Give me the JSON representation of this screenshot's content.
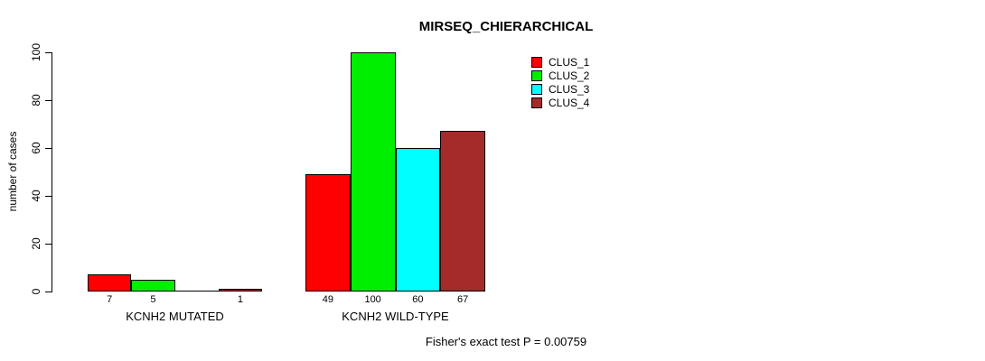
{
  "chart_data": {
    "type": "bar",
    "title": "MIRSEQ_CHIERARCHICAL",
    "categories": [
      "KCNH2 MUTATED",
      "KCNH2 WILD-TYPE"
    ],
    "series": [
      {
        "name": "CLUS_1",
        "color": "#FF0000",
        "values": [
          7,
          49
        ]
      },
      {
        "name": "CLUS_2",
        "color": "#00EE00",
        "values": [
          5,
          100
        ]
      },
      {
        "name": "CLUS_3",
        "color": "#00FFFF",
        "values": [
          0,
          60
        ]
      },
      {
        "name": "CLUS_4",
        "color": "#A52A2A",
        "values": [
          1,
          67
        ]
      }
    ],
    "bar_value_labels": [
      [
        "7",
        "5",
        "",
        "1"
      ],
      [
        "49",
        "100",
        "60",
        "67"
      ]
    ],
    "xlabel": "",
    "ylabel": "number of cases",
    "ylim": [
      0,
      100
    ],
    "yticks": [
      0,
      20,
      40,
      60,
      80,
      100
    ],
    "grid": false,
    "legend_position": "top-right",
    "annotation": "Fisher's exact test P = 0.00759"
  }
}
